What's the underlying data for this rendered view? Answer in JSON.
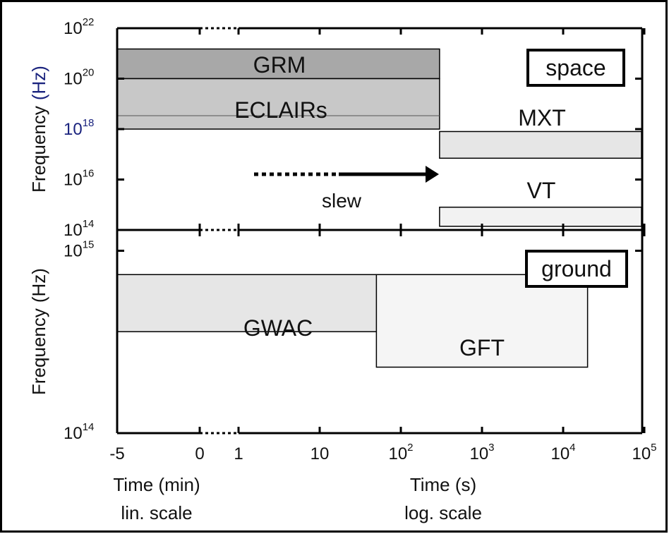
{
  "chart_data": [
    {
      "type": "timeline",
      "panel": "space",
      "panel_label": "space",
      "ylabel": "Frequency",
      "ylabel_unit": "(Hz)",
      "yscale": "log",
      "ylim": [
        100000000000000.0,
        1e+22
      ],
      "y_ticks": [
        {
          "base": "10",
          "exp": "22"
        },
        {
          "base": "10",
          "exp": "20"
        },
        {
          "base": "10",
          "exp": "18"
        },
        {
          "base": "10",
          "exp": "16"
        },
        {
          "base": "10",
          "exp": "14"
        }
      ],
      "bands": [
        {
          "label": "GRM",
          "t_start": -5,
          "t_end": 300,
          "f_low": 1e+20,
          "f_high": 1.5e+21,
          "color": "#a8a8a8"
        },
        {
          "label": "ECLAIRs",
          "t_start": -5,
          "t_end": 300,
          "f_low": 1e+18,
          "f_high": 1e+20,
          "color": "#c8c8c8"
        },
        {
          "label": "MXT",
          "t_start": 300,
          "t_end": 100000,
          "f_low": 7e+16,
          "f_high": 8e+17,
          "color": "#e6e6e6"
        },
        {
          "label": "VT",
          "t_start": 300,
          "t_end": 100000,
          "f_low": 140000000000000.0,
          "f_high": 800000000000000.0,
          "color": "#f2f2f2"
        }
      ],
      "annotations": [
        {
          "text": "slew",
          "from_time": 1,
          "to_time": 300
        }
      ]
    },
    {
      "type": "timeline",
      "panel": "ground",
      "panel_label": "ground",
      "ylabel": "Frequency",
      "ylabel_unit": "(Hz)",
      "yscale": "log",
      "ylim": [
        100000000000000.0,
        1300000000000000.0
      ],
      "y_ticks": [
        {
          "base": "10",
          "exp": "15"
        },
        {
          "base": "10",
          "exp": "14"
        }
      ],
      "bands": [
        {
          "label": "GWAC",
          "t_start": -5,
          "t_end": 300,
          "f_low": 360000000000000.0,
          "f_high": 740000000000000.0,
          "color": "#e6e6e6"
        },
        {
          "label": "GFT",
          "t_start": 50,
          "t_end": 20000,
          "f_low": 230000000000000.0,
          "f_high": 740000000000000.0,
          "color": "#f5f5f5"
        }
      ]
    }
  ],
  "x_axis": {
    "ticks": [
      {
        "label": "-5",
        "sup": ""
      },
      {
        "label": "0",
        "sup": ""
      },
      {
        "label": "1",
        "sup": ""
      },
      {
        "label": "10",
        "sup": ""
      },
      {
        "label": "10",
        "sup": "2"
      },
      {
        "label": "10",
        "sup": "3"
      },
      {
        "label": "10",
        "sup": "4"
      },
      {
        "label": "10",
        "sup": "5"
      }
    ],
    "left_label": [
      "Time (min)",
      "lin. scale"
    ],
    "right_label": [
      "Time (s)",
      "log. scale"
    ]
  }
}
